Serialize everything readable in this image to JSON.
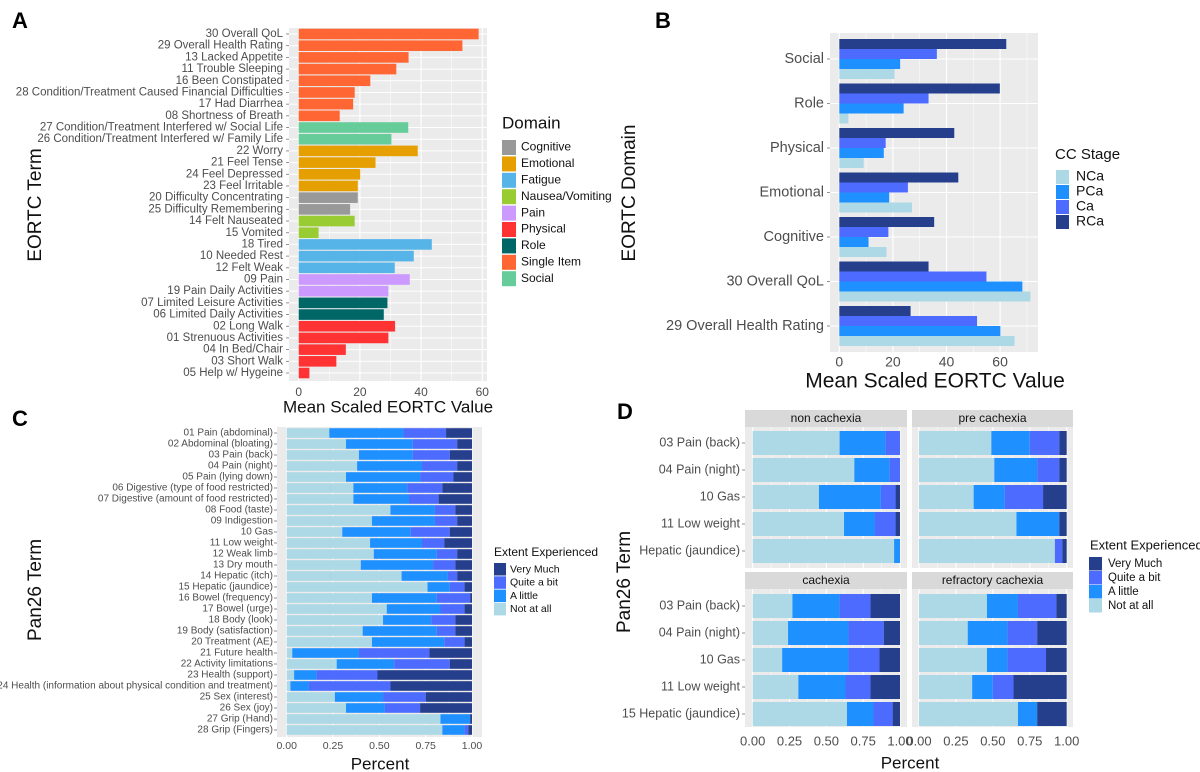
{
  "panel_letters": [
    "A",
    "B",
    "C",
    "D"
  ],
  "chart_data": [
    {
      "panel": "A",
      "type": "bar",
      "orientation": "horizontal",
      "xlabel": "Mean Scaled EORTC Value",
      "ylabel": "EORTC Term",
      "xlim": [
        0,
        62
      ],
      "xticks": [
        "0",
        "20",
        "40",
        "60"
      ],
      "xtick_values": [
        0,
        20,
        40,
        60
      ],
      "grid": true,
      "legend_title": "Domain",
      "legend_placement": "right",
      "legend": [
        "Cognitive",
        "Emotional",
        "Fatigue",
        "Nausea/Vomiting",
        "Pain",
        "Physical",
        "Role",
        "Single Item",
        "Social"
      ],
      "colors": {
        "Cognitive": "#999999",
        "Emotional": "#E69F00",
        "Fatigue": "#56B4E9",
        "Nausea/Vomiting": "#99CC33",
        "Pain": "#CC99FF",
        "Physical": "#FF3333",
        "Role": "#006666",
        "Single Item": "#FF6633",
        "Social": "#66CC99"
      },
      "categories": [
        "30 Overall QoL",
        "29 Overall Health Rating",
        "13 Lacked Appetite",
        "11 Trouble Sleeping",
        "16 Been Constipated",
        "28 Condition/Treatment Caused Financial Difficulties",
        "17 Had Diarrhea",
        "08 Shortness of Breath",
        "27 Condition/Treatment Interfered w/ Social Life",
        "26 Condition/Treatment Interfered w/ Family Life",
        "22 Worry",
        "21 Feel Tense",
        "24 Feel Depressed",
        "23 Feel Irritable",
        "20 Difficulty Concentrating",
        "25 Difficulty Remembering",
        "14 Felt Nauseated",
        "15 Vomited",
        "18 Tired",
        "10 Needed Rest",
        "12 Felt Weak",
        "09 Pain",
        "19 Pain Daily Activities",
        "07 Limited Leisure Activities",
        "06 Limited Daily Activities",
        "02 Long Walk",
        "01 Strenuous Activities",
        "04 In Bed/Chair",
        "03 Short Walk",
        "05 Help w/ Hygeine"
      ],
      "values": [
        58.8,
        53.5,
        35.9,
        31.9,
        23.4,
        18.3,
        17.8,
        13.4,
        35.8,
        30.3,
        38.9,
        25.1,
        20.1,
        19.3,
        19.3,
        16.8,
        18.3,
        6.5,
        43.5,
        37.6,
        31.4,
        36.3,
        29.3,
        29.0,
        27.8,
        31.5,
        29.3,
        15.4,
        12.3,
        3.5
      ],
      "domains": [
        "Single Item",
        "Single Item",
        "Single Item",
        "Single Item",
        "Single Item",
        "Single Item",
        "Single Item",
        "Single Item",
        "Social",
        "Social",
        "Emotional",
        "Emotional",
        "Emotional",
        "Emotional",
        "Cognitive",
        "Cognitive",
        "Nausea/Vomiting",
        "Nausea/Vomiting",
        "Fatigue",
        "Fatigue",
        "Fatigue",
        "Pain",
        "Pain",
        "Role",
        "Role",
        "Physical",
        "Physical",
        "Physical",
        "Physical",
        "Physical"
      ]
    },
    {
      "panel": "B",
      "type": "bar",
      "orientation": "horizontal",
      "grouped": true,
      "xlabel": "Mean Scaled EORTC Value",
      "ylabel": "EORTC Domain",
      "xlim": [
        0,
        74
      ],
      "xticks": [
        "0",
        "20",
        "40",
        "60"
      ],
      "xtick_values": [
        0,
        20,
        40,
        60
      ],
      "grid": true,
      "legend_title": "CC Stage",
      "legend_placement": "right",
      "categories": [
        "Social",
        "Role",
        "Physical",
        "Emotional",
        "Cognitive",
        "30 Overall QoL",
        "29 Overall Health Rating"
      ],
      "series": [
        {
          "name": "NCa",
          "color": "#ADD8E6",
          "values": [
            20.6,
            3.4,
            9.1,
            27.1,
            17.6,
            71.3,
            65.4
          ]
        },
        {
          "name": "PCa",
          "color": "#1E90FF",
          "values": [
            22.7,
            24.0,
            16.6,
            18.6,
            10.9,
            68.3,
            60.1
          ]
        },
        {
          "name": "Ca",
          "color": "#4D6BFE",
          "values": [
            36.4,
            33.3,
            17.3,
            25.6,
            18.3,
            54.9,
            51.4
          ]
        },
        {
          "name": "RCa",
          "color": "#253F8C",
          "values": [
            62.3,
            59.9,
            42.9,
            44.4,
            35.4,
            33.3,
            26.6
          ]
        }
      ]
    },
    {
      "panel": "C",
      "type": "bar",
      "orientation": "horizontal",
      "stacked": true,
      "xlabel": "Percent",
      "ylabel": "Pan26 Term",
      "xlim": [
        0,
        1
      ],
      "xticks": [
        "0.00",
        "0.25",
        "0.50",
        "0.75",
        "1.00"
      ],
      "xtick_values": [
        0,
        0.25,
        0.5,
        0.75,
        1
      ],
      "grid": true,
      "legend_title": "Extent Experienced",
      "legend_placement": "right",
      "legend": [
        "Very Much",
        "Quite a bit",
        "A little",
        "Not at all"
      ],
      "categories": [
        "01 Pain (abdominal)",
        "02 Abdominal (bloating)",
        "03 Pain (back)",
        "04 Pain (night)",
        "05 Pain (lying down)",
        "06 Digestive (type of food restricted)",
        "07 Digestive (amount of food restricted)",
        "08 Food (taste)",
        "09 Indigestion",
        "10 Gas",
        "11 Low weight",
        "12 Weak limb",
        "13 Dry mouth",
        "14 Hepatic (itch)",
        "15 Hepatic (jaundice)",
        "16 Bowel (frequency)",
        "17 Bowel (urge)",
        "18 Body (look)",
        "19 Body (satisfaction)",
        "20 Treatment (AE)",
        "21 Future health",
        "22 Activity limitations",
        "23 Health (support)",
        "24 Health (information about physical condition and treatment)",
        "25 Sex (interest)",
        "26 Sex (joy)",
        "27 Grip (Hand)",
        "28 Grip (Fingers)"
      ],
      "series": [
        {
          "name": "Not at all",
          "color": "#ADD8E6",
          "values": [
            0.23,
            0.32,
            0.39,
            0.38,
            0.32,
            0.36,
            0.36,
            0.56,
            0.46,
            0.3,
            0.45,
            0.47,
            0.4,
            0.62,
            0.76,
            0.46,
            0.54,
            0.52,
            0.41,
            0.46,
            0.03,
            0.27,
            0.04,
            0.02,
            0.26,
            0.32,
            0.83,
            0.84
          ]
        },
        {
          "name": "A little",
          "color": "#1E90FF",
          "values": [
            0.4,
            0.36,
            0.29,
            0.35,
            0.4,
            0.29,
            0.3,
            0.24,
            0.34,
            0.37,
            0.28,
            0.34,
            0.39,
            0.25,
            0.12,
            0.35,
            0.29,
            0.26,
            0.4,
            0.39,
            0.36,
            0.31,
            0.12,
            0.1,
            0.26,
            0.21,
            0.16,
            0.12
          ]
        },
        {
          "name": "Quite a bit",
          "color": "#4D6BFE",
          "values": [
            0.23,
            0.24,
            0.2,
            0.19,
            0.18,
            0.19,
            0.16,
            0.11,
            0.12,
            0.21,
            0.12,
            0.11,
            0.12,
            0.05,
            0.08,
            0.18,
            0.13,
            0.13,
            0.1,
            0.11,
            0.38,
            0.3,
            0.33,
            0.44,
            0.23,
            0.19,
            0.0,
            0.02
          ]
        },
        {
          "name": "Very Much",
          "color": "#253F8C",
          "values": [
            0.14,
            0.08,
            0.12,
            0.08,
            0.1,
            0.16,
            0.18,
            0.09,
            0.08,
            0.12,
            0.15,
            0.08,
            0.09,
            0.08,
            0.04,
            0.01,
            0.04,
            0.09,
            0.09,
            0.04,
            0.23,
            0.12,
            0.51,
            0.44,
            0.25,
            0.28,
            0.01,
            0.02
          ]
        }
      ]
    },
    {
      "panel": "D",
      "type": "bar",
      "orientation": "horizontal",
      "stacked": true,
      "xlabel": "Percent",
      "ylabel": "Pan26 Term",
      "xlim": [
        0,
        1
      ],
      "xticks": [
        "0.00",
        "0.25",
        "0.50",
        "0.75",
        "1.00"
      ],
      "xtick_values": [
        0,
        0.25,
        0.5,
        0.75,
        1
      ],
      "grid": true,
      "legend_title": "Extent Experienced",
      "legend_placement": "right",
      "legend": [
        "Very Much",
        "Quite a bit",
        "A little",
        "Not at all"
      ],
      "series_names": [
        "Not at all",
        "A little",
        "Quite a bit",
        "Very Much"
      ],
      "colors": [
        "#ADD8E6",
        "#1E90FF",
        "#4D6BFE",
        "#253F8C"
      ],
      "facets": [
        {
          "title": "non cachexia",
          "categories": [
            "03 Pain (back)",
            "04 Pain (night)",
            "10 Gas",
            "11 Low weight",
            "Hepatic (jaundice)"
          ],
          "values": [
            [
              0.59,
              0.69,
              0.45,
              0.62,
              0.96
            ],
            [
              0.31,
              0.24,
              0.42,
              0.21,
              0.04
            ],
            [
              0.1,
              0.07,
              0.1,
              0.14,
              0.0
            ],
            [
              0.0,
              0.0,
              0.03,
              0.03,
              0.0
            ]
          ]
        },
        {
          "title": "pre cachexia",
          "categories": [
            "03 Pain (back)",
            "04 Pain (night)",
            "10 Gas",
            "11 Low weight",
            "Hepatic (jaundice)"
          ],
          "values": [
            [
              0.49,
              0.51,
              0.37,
              0.66,
              0.92
            ],
            [
              0.26,
              0.29,
              0.21,
              0.29,
              0.0
            ],
            [
              0.2,
              0.15,
              0.26,
              0.0,
              0.05
            ],
            [
              0.05,
              0.05,
              0.16,
              0.05,
              0.03
            ]
          ]
        },
        {
          "title": "cachexia",
          "categories": [
            "03 Pain (back)",
            "04 Pain (night)",
            "10 Gas",
            "11 Low weight",
            "15 Hepatic (jaundice)"
          ],
          "values": [
            [
              0.27,
              0.24,
              0.2,
              0.31,
              0.64
            ],
            [
              0.32,
              0.41,
              0.45,
              0.32,
              0.18
            ],
            [
              0.21,
              0.24,
              0.21,
              0.17,
              0.13
            ],
            [
              0.2,
              0.11,
              0.14,
              0.2,
              0.05
            ]
          ]
        },
        {
          "title": "refractory cachexia",
          "categories": [
            "03 Pain (back)",
            "04 Pain (night)",
            "10 Gas",
            "11 Low weight",
            "15 Hepatic (jaundice)"
          ],
          "values": [
            [
              0.46,
              0.33,
              0.46,
              0.36,
              0.67
            ],
            [
              0.21,
              0.27,
              0.14,
              0.14,
              0.13
            ],
            [
              0.26,
              0.2,
              0.26,
              0.14,
              0.0
            ],
            [
              0.07,
              0.2,
              0.14,
              0.36,
              0.2
            ]
          ]
        }
      ]
    }
  ]
}
